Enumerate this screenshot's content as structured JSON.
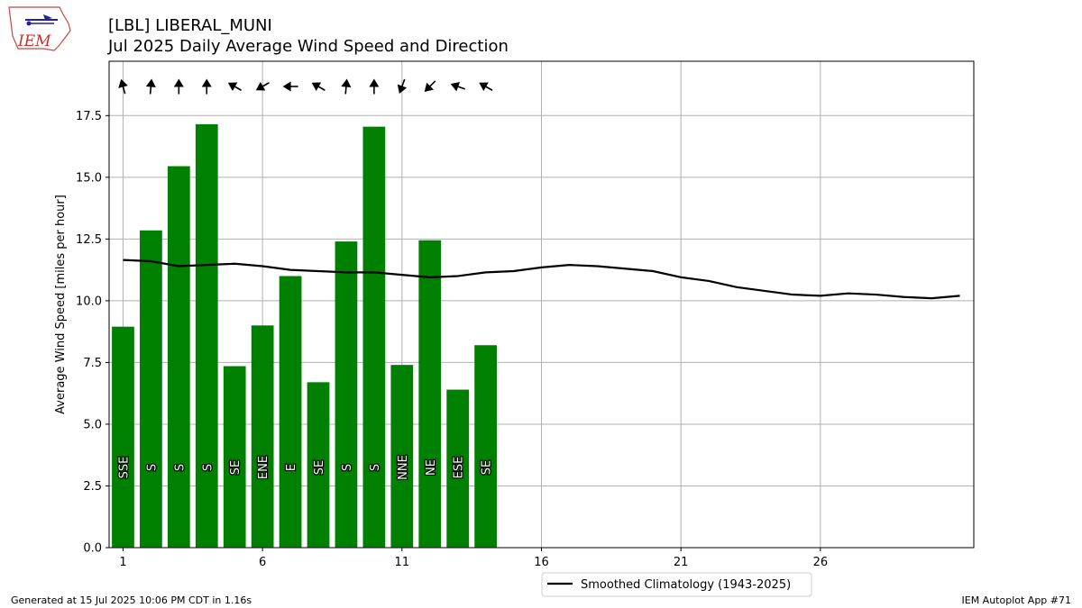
{
  "header": {
    "logo_text": "IEM",
    "title_line1": "[LBL] LIBERAL_MUNI",
    "title_line2": "Jul 2025 Daily Average Wind Speed and Direction"
  },
  "footer": {
    "generated": "Generated at 15 Jul 2025 10:06 PM CDT in 1.16s",
    "app": "IEM Autoplot App #71"
  },
  "colors": {
    "bar": "#008000",
    "climo_line": "#000000",
    "grid": "#b0b0b0"
  },
  "chart_data": {
    "type": "bar",
    "title": "[LBL] LIBERAL_MUNI",
    "subtitle": "Jul 2025 Daily Average Wind Speed and Direction",
    "xlabel": "",
    "ylabel": "Average Wind Speed [miles per hour]",
    "xlim": [
      0.5,
      31.5
    ],
    "ylim": [
      0,
      19.7
    ],
    "x_ticks": [
      1,
      6,
      11,
      16,
      21,
      26
    ],
    "y_ticks": [
      "0.0",
      "2.5",
      "5.0",
      "7.5",
      "10.0",
      "12.5",
      "15.0",
      "17.5"
    ],
    "grid": true,
    "legend_position": "bottom-center",
    "bars": {
      "days": [
        1,
        2,
        3,
        4,
        5,
        6,
        7,
        8,
        9,
        10,
        11,
        12,
        13,
        14
      ],
      "values": [
        8.95,
        12.85,
        15.45,
        17.15,
        7.35,
        9.0,
        11.0,
        6.7,
        12.4,
        17.05,
        7.4,
        12.45,
        6.4,
        8.2
      ],
      "direction_labels": [
        "SSE",
        "S",
        "S",
        "S",
        "SE",
        "ENE",
        "E",
        "SE",
        "S",
        "S",
        "NNE",
        "NE",
        "ESE",
        "SE"
      ],
      "arrow_bearings_deg": [
        345,
        5,
        0,
        0,
        300,
        240,
        270,
        300,
        5,
        0,
        200,
        225,
        290,
        300
      ]
    },
    "series": [
      {
        "name": "Smoothed Climatology (1943-2025)",
        "x": [
          1,
          2,
          3,
          4,
          5,
          6,
          7,
          8,
          9,
          10,
          11,
          12,
          13,
          14,
          15,
          16,
          17,
          18,
          19,
          20,
          21,
          22,
          23,
          24,
          25,
          26,
          27,
          28,
          29,
          30,
          31
        ],
        "values": [
          11.65,
          11.6,
          11.4,
          11.45,
          11.5,
          11.4,
          11.25,
          11.2,
          11.15,
          11.15,
          11.05,
          10.95,
          11.0,
          11.15,
          11.2,
          11.35,
          11.45,
          11.4,
          11.3,
          11.2,
          10.95,
          10.8,
          10.55,
          10.4,
          10.25,
          10.2,
          10.3,
          10.25,
          10.15,
          10.1,
          10.2
        ]
      }
    ]
  }
}
